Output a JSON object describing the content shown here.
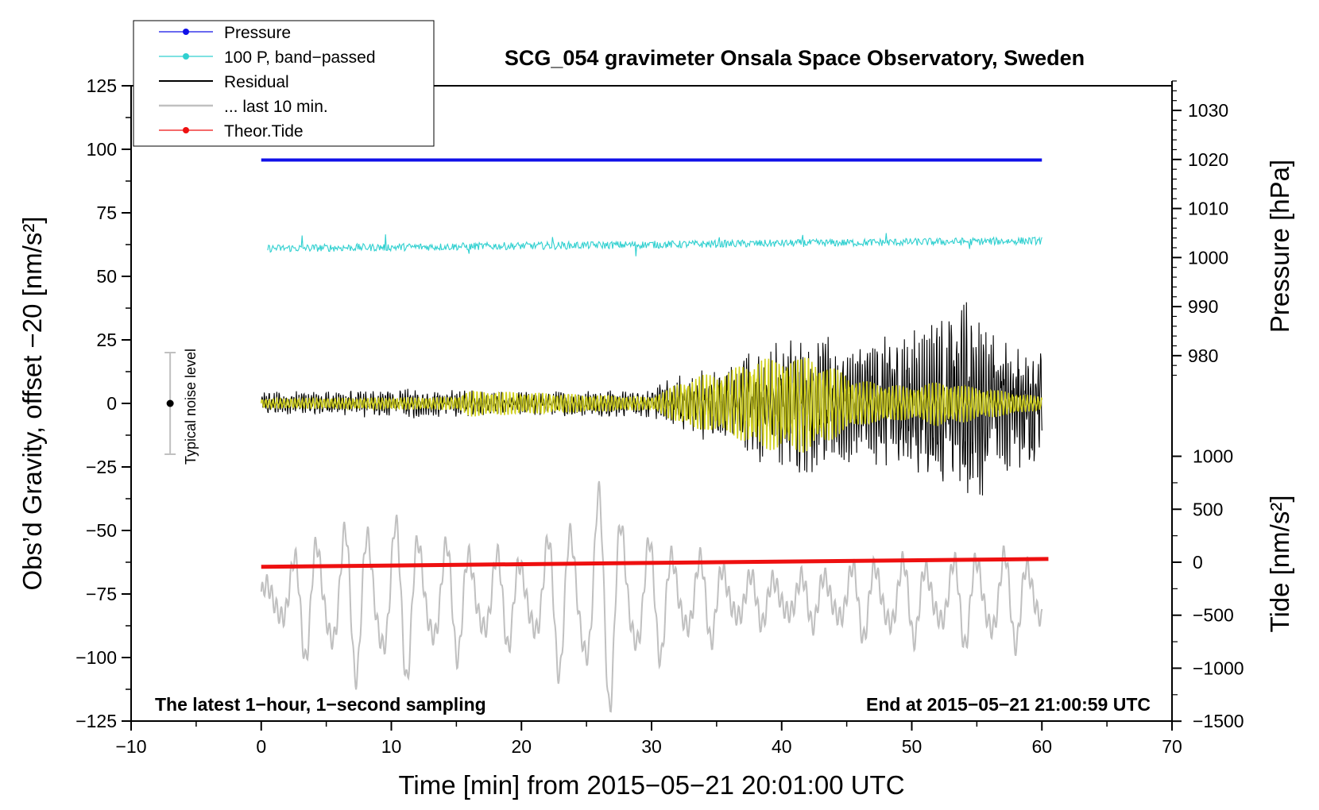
{
  "chart_data": {
    "type": "line",
    "title": "SCG_054 gravimeter Onsala Space Observatory, Sweden",
    "xlabel": "Time [min] from 2015−05−21 20:01:00 UTC",
    "ylabel_left": "Obs’d Gravity, offset −20 [nm/s²]",
    "ylabel_right_pressure": "Pressure [hPa]",
    "ylabel_right_tide": "Tide [nm/s²]",
    "xlim": [
      -10,
      70
    ],
    "ylim_left": [
      -125,
      125
    ],
    "x_ticks": [
      -10,
      0,
      10,
      20,
      30,
      40,
      50,
      60,
      70
    ],
    "x_tick_labels": [
      "−10",
      "0",
      "10",
      "20",
      "30",
      "40",
      "50",
      "60",
      "70"
    ],
    "y_ticks_left": [
      125,
      100,
      75,
      50,
      25,
      0,
      -25,
      -50,
      -75,
      -100,
      -125
    ],
    "y_tick_labels_left": [
      "125",
      "100",
      "75",
      "50",
      "25",
      "0",
      "−25",
      "−50",
      "−75",
      "−100",
      "−125"
    ],
    "pressure_axis": {
      "ticks": [
        1030,
        1020,
        1010,
        1000,
        990,
        980
      ],
      "tick_labels": [
        "1030",
        "1020",
        "1010",
        "1000",
        "990",
        "980"
      ],
      "gravity_at_1020": 96,
      "gravity_per_hpa": 1.93
    },
    "tide_axis": {
      "ticks": [
        1000,
        500,
        0,
        -500,
        -1000,
        -1500
      ],
      "tick_labels": [
        "1000",
        "500",
        "0",
        "−500",
        "−1000",
        "−1500"
      ],
      "gravity_at_0": -62.5,
      "gravity_per_unit": 0.0417
    },
    "legend": [
      {
        "label": "Pressure",
        "color": "#1010e8",
        "marker": true
      },
      {
        "label": "100 P, band−passed",
        "color": "#30d0d0",
        "marker": true
      },
      {
        "label": "Residual",
        "color": "#000000",
        "marker": false
      },
      {
        "label": "... last 10 min.",
        "color": "#c0c0c0",
        "marker": false
      },
      {
        "label": "Theor.Tide",
        "color": "#ee1010",
        "marker": true
      }
    ],
    "series": [
      {
        "name": "Pressure",
        "color": "#1010e8",
        "x": [
          0,
          60
        ],
        "y": [
          95.8,
          95.8
        ]
      },
      {
        "name": "100 P, band−passed",
        "color": "#30d0d0",
        "x_range": [
          0.5,
          60
        ],
        "baseline_start": 61,
        "baseline_end": 64,
        "noise_amplitude": 1.5
      },
      {
        "name": "Residual",
        "color": "#000000",
        "x_range": [
          0,
          60
        ],
        "envelope": [
          [
            0,
            4
          ],
          [
            12,
            5
          ],
          [
            20,
            4
          ],
          [
            30,
            5
          ],
          [
            32,
            10
          ],
          [
            36,
            14
          ],
          [
            38,
            20
          ],
          [
            42,
            24
          ],
          [
            46,
            20
          ],
          [
            50,
            25
          ],
          [
            54,
            35
          ],
          [
            57,
            25
          ],
          [
            60,
            22
          ]
        ]
      },
      {
        "name": "Residual filtered",
        "color": "#d0d020",
        "x_range": [
          0,
          60
        ],
        "envelope": [
          [
            0,
            1.5
          ],
          [
            15,
            2
          ],
          [
            16,
            4
          ],
          [
            30,
            2
          ],
          [
            33,
            8
          ],
          [
            36,
            10
          ],
          [
            38,
            14
          ],
          [
            42,
            15
          ],
          [
            46,
            7
          ],
          [
            50,
            5
          ],
          [
            52,
            7
          ],
          [
            60,
            2
          ]
        ]
      },
      {
        "name": "... last 10 min.",
        "color": "#c0c0c0",
        "x_range": [
          0,
          60
        ],
        "mean": -77,
        "envelope": [
          [
            0,
            6
          ],
          [
            2,
            15
          ],
          [
            4,
            28
          ],
          [
            10,
            35
          ],
          [
            14,
            25
          ],
          [
            20,
            18
          ],
          [
            24,
            35
          ],
          [
            26,
            48
          ],
          [
            30,
            25
          ],
          [
            34,
            18
          ],
          [
            38,
            10
          ],
          [
            42,
            10
          ],
          [
            48,
            18
          ],
          [
            52,
            15
          ],
          [
            56,
            22
          ],
          [
            60,
            15
          ]
        ]
      },
      {
        "name": "Theor.Tide",
        "color": "#ee1010",
        "x": [
          0,
          60.5
        ],
        "y": [
          -64.3,
          -61.2
        ]
      }
    ],
    "noise_bar": {
      "label": "Typical noise level",
      "x": -7,
      "center": 0,
      "half_range": 20
    },
    "annotations": [
      {
        "text": "The latest 1−hour, 1−second sampling",
        "position": "bottom-left"
      },
      {
        "text": "End at 2015−05−21 21:00:59 UTC",
        "position": "bottom-right"
      }
    ],
    "legend_position": "top-left"
  }
}
